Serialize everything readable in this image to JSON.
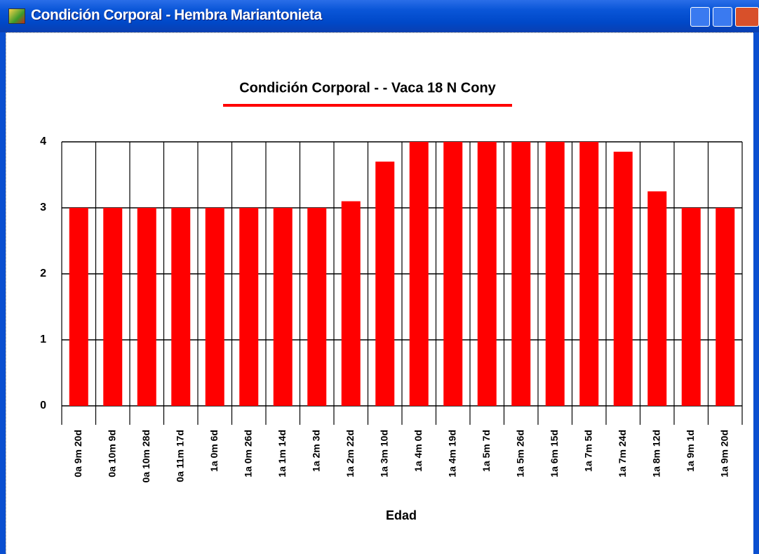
{
  "window": {
    "title": "Condición Corporal - Hembra Mariantonieta"
  },
  "chart_data": {
    "type": "bar",
    "title": "Condición Corporal - - Vaca 18 N Cony",
    "x_label": "Edad",
    "categories": [
      "0a 9m 20d",
      "0a 10m 9d",
      "0a 10m 28d",
      "0a 11m 17d",
      "1a 0m 6d",
      "1a 0m 26d",
      "1a 1m 14d",
      "1a 2m 3d",
      "1a 2m 22d",
      "1a 3m 10d",
      "1a 4m 0d",
      "1a 4m 19d",
      "1a 5m 7d",
      "1a 5m 26d",
      "1a 6m 15d",
      "1a 7m 5d",
      "1a 7m 24d",
      "1a 8m 12d",
      "1a 9m 1d",
      "1a 9m 20d"
    ],
    "values": [
      3,
      3,
      3,
      3,
      3,
      3,
      3,
      3,
      3.1,
      3.7,
      4,
      4,
      4,
      4,
      4,
      4,
      3.85,
      3.25,
      3,
      3
    ],
    "color": "#ff0000",
    "ylim": [
      0,
      4
    ],
    "yticks": [
      0,
      1,
      2,
      3,
      4
    ],
    "grid": true
  }
}
